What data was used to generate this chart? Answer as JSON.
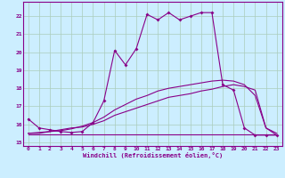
{
  "xlabel": "Windchill (Refroidissement éolien,°C)",
  "bg_color": "#cceeff",
  "grid_color": "#aaccbb",
  "line_color": "#880088",
  "xlim": [
    -0.5,
    23.5
  ],
  "ylim": [
    14.8,
    22.8
  ],
  "yticks": [
    15,
    16,
    17,
    18,
    19,
    20,
    21,
    22
  ],
  "xticks": [
    0,
    1,
    2,
    3,
    4,
    5,
    6,
    7,
    8,
    9,
    10,
    11,
    12,
    13,
    14,
    15,
    16,
    17,
    18,
    19,
    20,
    21,
    22,
    23
  ],
  "series1_x": [
    0,
    1,
    2,
    3,
    4,
    5,
    6,
    7,
    8,
    9,
    10,
    11,
    12,
    13,
    14,
    15,
    16,
    17,
    18,
    19,
    20,
    21,
    22,
    23
  ],
  "series1_y": [
    16.3,
    15.8,
    15.7,
    15.6,
    15.55,
    15.6,
    16.1,
    17.3,
    20.1,
    19.3,
    20.2,
    22.1,
    21.8,
    22.2,
    21.8,
    22.0,
    22.2,
    22.2,
    18.2,
    17.9,
    15.8,
    15.4,
    15.4,
    15.4
  ],
  "series2_x": [
    0,
    1,
    2,
    3,
    4,
    5,
    6,
    7,
    8,
    9,
    10,
    11,
    12,
    13,
    14,
    15,
    16,
    17,
    18,
    19,
    20,
    21,
    22,
    23
  ],
  "series2_y": [
    15.45,
    15.45,
    15.45,
    15.45,
    15.45,
    15.45,
    15.45,
    15.45,
    15.45,
    15.45,
    15.45,
    15.45,
    15.45,
    15.45,
    15.45,
    15.45,
    15.45,
    15.45,
    15.45,
    15.45,
    15.45,
    15.45,
    15.45,
    15.45
  ],
  "series3_x": [
    0,
    1,
    2,
    3,
    4,
    5,
    6,
    7,
    8,
    9,
    10,
    11,
    12,
    13,
    14,
    15,
    16,
    17,
    18,
    19,
    20,
    21,
    22,
    23
  ],
  "series3_y": [
    15.5,
    15.5,
    15.6,
    15.7,
    15.8,
    15.85,
    16.0,
    16.2,
    16.5,
    16.7,
    16.9,
    17.1,
    17.3,
    17.5,
    17.6,
    17.7,
    17.85,
    17.95,
    18.1,
    18.2,
    18.1,
    17.9,
    15.8,
    15.5
  ],
  "series4_x": [
    0,
    1,
    2,
    3,
    4,
    5,
    6,
    7,
    8,
    9,
    10,
    11,
    12,
    13,
    14,
    15,
    16,
    17,
    18,
    19,
    20,
    21,
    22,
    23
  ],
  "series4_y": [
    15.5,
    15.55,
    15.6,
    15.65,
    15.75,
    15.9,
    16.1,
    16.4,
    16.8,
    17.1,
    17.4,
    17.6,
    17.85,
    18.0,
    18.1,
    18.2,
    18.3,
    18.4,
    18.45,
    18.4,
    18.2,
    17.6,
    15.8,
    15.4
  ]
}
